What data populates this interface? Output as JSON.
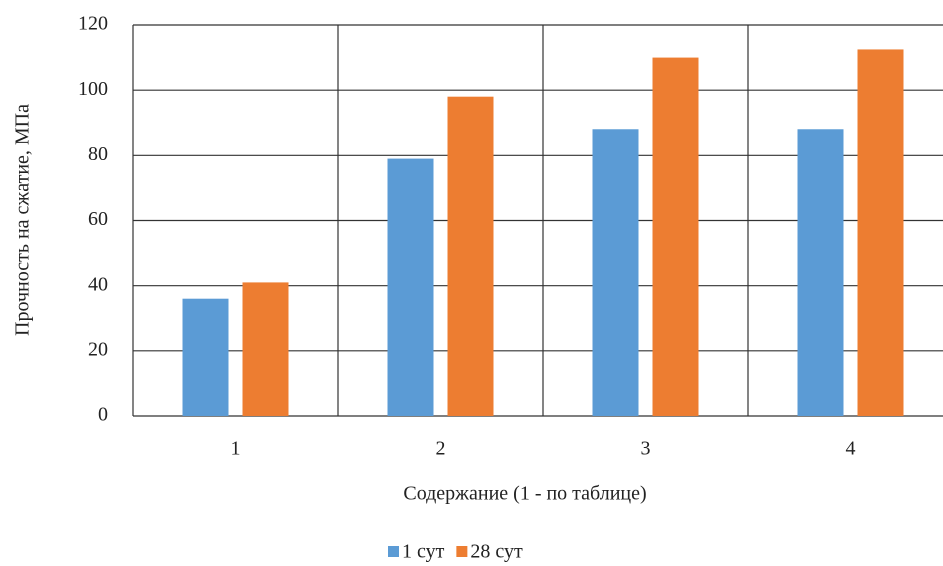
{
  "chart_data": {
    "type": "bar",
    "x_label": "Содержание (1 - по таблице)",
    "y_label": "Прочность на сжатие, МПа",
    "categories": [
      "1",
      "2",
      "3",
      "4"
    ],
    "series": [
      {
        "name": "1 сут",
        "color": "#5b9bd5",
        "values": [
          36,
          79,
          88,
          88
        ]
      },
      {
        "name": "28 сут",
        "color": "#ed7d31",
        "values": [
          41,
          98,
          110,
          112.5
        ]
      }
    ],
    "ylim": [
      0,
      120
    ],
    "yticks": [
      0,
      20,
      40,
      60,
      80,
      100,
      120
    ],
    "grid": true,
    "legend": "bottom"
  }
}
